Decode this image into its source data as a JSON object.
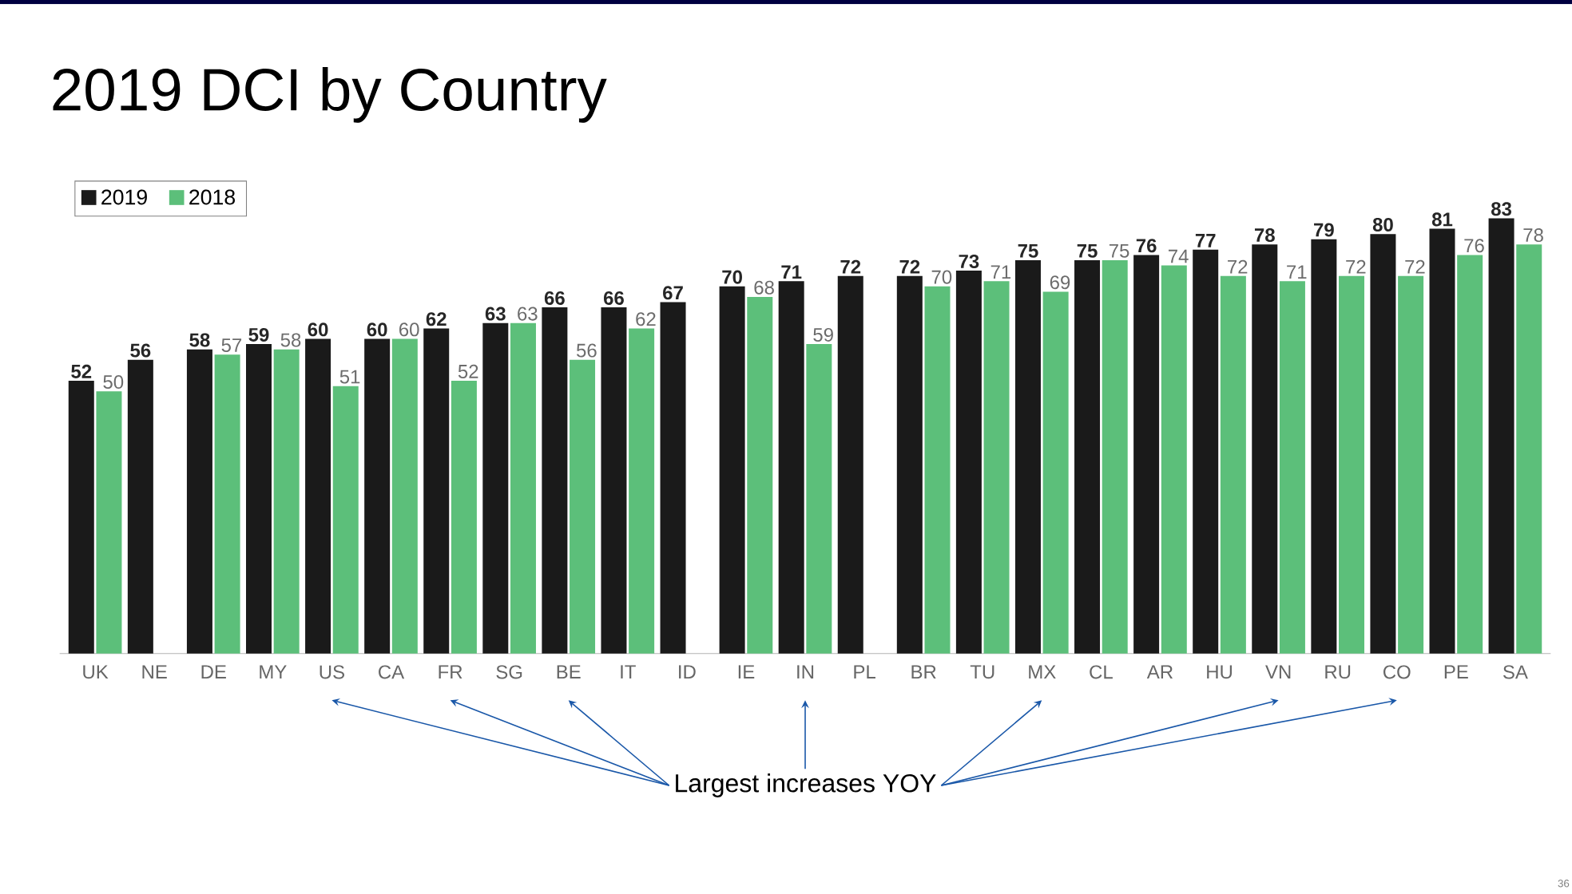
{
  "chart_data": {
    "type": "bar",
    "title": "2019 DCI by Country",
    "categories": [
      "UK",
      "NE",
      "DE",
      "MY",
      "US",
      "CA",
      "FR",
      "SG",
      "BE",
      "IT",
      "ID",
      "IE",
      "IN",
      "PL",
      "BR",
      "TU",
      "MX",
      "CL",
      "AR",
      "HU",
      "VN",
      "RU",
      "CO",
      "PE",
      "SA"
    ],
    "series": [
      {
        "name": "2019",
        "color": "#1a1a1a",
        "values": [
          52,
          56,
          58,
          59,
          60,
          60,
          62,
          63,
          66,
          66,
          67,
          70,
          71,
          72,
          72,
          73,
          75,
          75,
          76,
          77,
          78,
          79,
          80,
          81,
          83
        ]
      },
      {
        "name": "2018",
        "color": "#5cbf7a",
        "values": [
          50,
          null,
          57,
          58,
          51,
          60,
          52,
          63,
          56,
          62,
          null,
          68,
          59,
          null,
          70,
          71,
          69,
          75,
          74,
          72,
          71,
          72,
          72,
          76,
          78
        ]
      }
    ],
    "data_labels": true,
    "legend": "top left",
    "annotations": [
      "Largest increases YOY",
      "36"
    ]
  }
}
